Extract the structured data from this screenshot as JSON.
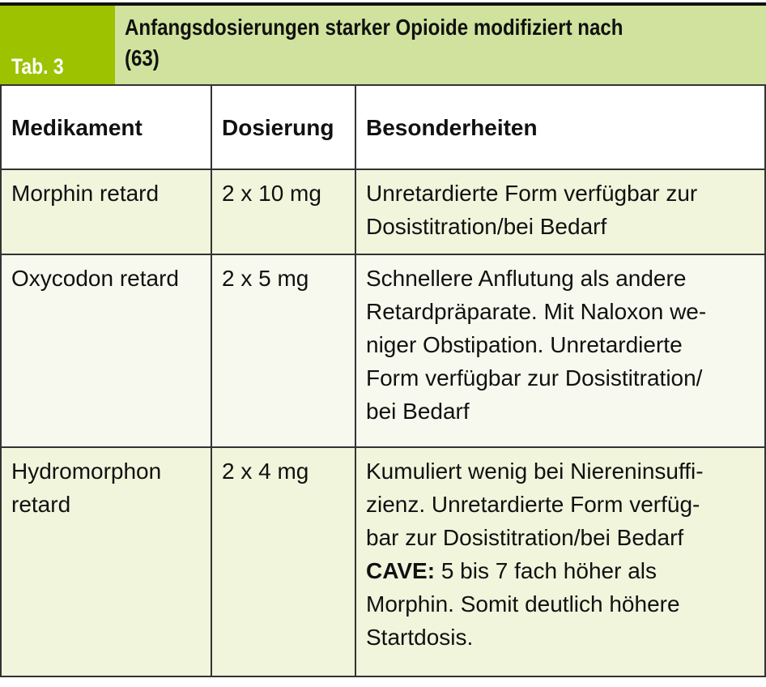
{
  "table": {
    "label": "Tab. 3",
    "title_lines": [
      "Anfangsdosierungen starker Opioide modifiziert nach",
      "(63)"
    ],
    "headers": [
      "Medikament",
      "Dosierung",
      "Besonderheiten"
    ],
    "rows": [
      {
        "medikament": [
          "Morphin retard"
        ],
        "dosierung": "2 x 10 mg",
        "besonderheiten": [
          "Unretardierte Form verfügbar zur",
          "Dosistitration/bei Bedarf"
        ]
      },
      {
        "medikament": [
          "Oxycodon retard"
        ],
        "dosierung": "2 x 5 mg",
        "besonderheiten": [
          "Schnellere Anflutung als andere",
          "Retardpräparate. Mit Naloxon we-",
          "niger Obstipation. Unretardierte",
          "Form verfügbar zur Dosistitration/",
          "bei Bedarf"
        ]
      },
      {
        "medikament": [
          "Hydromorphon",
          "retard"
        ],
        "dosierung": "2 x 4 mg",
        "besonderheiten": [
          "Kumuliert wenig bei Niereninsuffi-",
          "zienz. Unretardierte Form verfüg-",
          "bar zur Dosistitration/bei Bedarf"
        ],
        "cave_label": "CAVE:",
        "cave_lines": [
          " 5 bis 7 fach höher als",
          "Morphin. Somit deutlich höhere",
          "Startdosis."
        ]
      }
    ]
  },
  "colors": {
    "tab_green": "#9cc200",
    "title_green": "#d0e29d",
    "row_light": "#f1f5dc",
    "row_lighter": "#f7f9ee"
  }
}
